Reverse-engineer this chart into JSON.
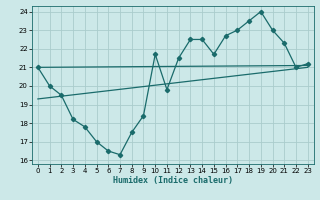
{
  "xlabel": "Humidex (Indice chaleur)",
  "background_color": "#cce8e8",
  "grid_color": "#aacccc",
  "line_color": "#1a6b6b",
  "xlim": [
    -0.5,
    23.5
  ],
  "ylim": [
    15.8,
    24.3
  ],
  "xticks": [
    0,
    1,
    2,
    3,
    4,
    5,
    6,
    7,
    8,
    9,
    10,
    11,
    12,
    13,
    14,
    15,
    16,
    17,
    18,
    19,
    20,
    21,
    22,
    23
  ],
  "yticks": [
    16,
    17,
    18,
    19,
    20,
    21,
    22,
    23,
    24
  ],
  "line1_x": [
    0,
    1,
    2,
    3,
    4,
    5,
    6,
    7,
    8,
    9,
    10,
    11,
    12,
    13,
    14,
    15,
    16,
    17,
    18,
    19,
    20,
    21,
    22,
    23
  ],
  "line1_y": [
    21.0,
    20.0,
    19.5,
    18.2,
    17.8,
    17.0,
    16.5,
    16.3,
    17.5,
    18.4,
    21.7,
    19.8,
    21.5,
    22.5,
    22.5,
    21.7,
    22.7,
    23.0,
    23.5,
    24.0,
    23.0,
    22.3,
    21.0,
    21.2
  ],
  "line2_x": [
    0,
    23
  ],
  "line2_y": [
    21.0,
    21.1
  ],
  "line3_x": [
    0,
    23
  ],
  "line3_y": [
    19.3,
    21.0
  ],
  "tick_labelsize": 5,
  "xlabel_fontsize": 6
}
